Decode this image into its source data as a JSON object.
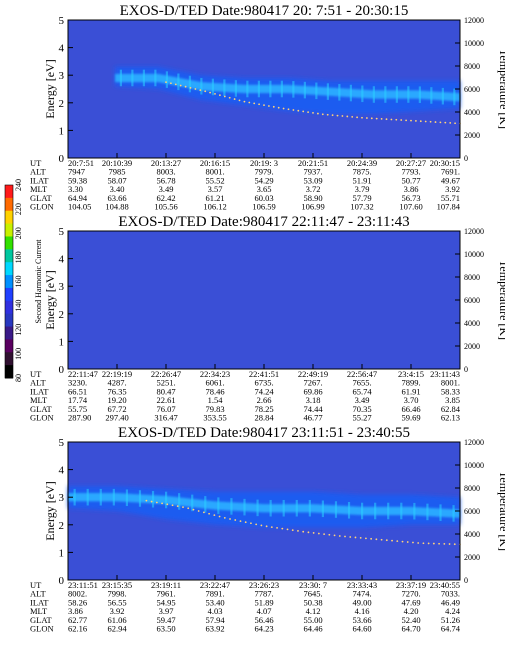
{
  "colorbar": {
    "label": "Second Harmonic Current",
    "ticks": [
      "240",
      "220",
      "200",
      "180",
      "160",
      "140",
      "120",
      "100",
      "80"
    ],
    "colors": [
      "#ff1a1a",
      "#ff6a00",
      "#ffd200",
      "#c8f000",
      "#32e000",
      "#00c8a0",
      "#00d8ff",
      "#0090ff",
      "#2040ff",
      "#3030e0",
      "#2838c0",
      "#3a1a88",
      "#5a0060",
      "#301030",
      "#000000"
    ]
  },
  "chart_data": [
    {
      "type": "heatmap",
      "title": "EXOS-D/TED   Date:980417  20: 7:51 - 20:30:15",
      "ylabel": "Energy [eV]",
      "y2label": "Temperature [K]",
      "ylim": [
        0,
        5
      ],
      "y2lim": [
        0,
        12000
      ],
      "yticks": [
        "0",
        "1",
        "2",
        "3",
        "4",
        "5"
      ],
      "y2ticks": [
        "0",
        "2000",
        "4000",
        "6000",
        "8000",
        "10000",
        "12000"
      ],
      "background": "#3a4fd6",
      "band": {
        "start": 0.12,
        "top": [
          3.3,
          3.3,
          3.0,
          2.9,
          2.9,
          2.8,
          2.8,
          2.8,
          2.8
        ],
        "bottom": [
          2.6,
          2.5,
          2.1,
          1.9,
          1.7,
          1.6,
          1.6,
          1.7,
          1.8
        ],
        "core": [
          2.9,
          2.9,
          2.6,
          2.5,
          2.5,
          2.4,
          2.3,
          2.3,
          2.2
        ]
      },
      "temperature": {
        "x": [
          0.25,
          0.35,
          0.45,
          0.55,
          0.65,
          0.75,
          0.85,
          0.95,
          1.0
        ],
        "y": [
          6600,
          5800,
          4900,
          4300,
          3800,
          3500,
          3300,
          3100,
          3000
        ]
      },
      "table": {
        "labels": [
          "UT",
          "ALT",
          "ILAT",
          "MLT",
          "GLAT",
          "GLON"
        ],
        "columns": [
          [
            "20:7:51",
            "7947",
            "59.38",
            "3.30",
            "64.94",
            "104.05"
          ],
          [
            "20:10:39",
            "7985",
            "58.07",
            "3.40",
            "63.66",
            "104.88"
          ],
          [
            "20:13:27",
            "8003.",
            "56.78",
            "3.49",
            "62.42",
            "105.56"
          ],
          [
            "20:16:15",
            "8001.",
            "55.52",
            "3.57",
            "61.21",
            "106.12"
          ],
          [
            "20:19: 3",
            "7979.",
            "54.29",
            "3.65",
            "60.03",
            "106.59"
          ],
          [
            "20:21:51",
            "7937.",
            "53.09",
            "3.72",
            "58.90",
            "106.99"
          ],
          [
            "20:24:39",
            "7875.",
            "51.91",
            "3.79",
            "57.79",
            "107.32"
          ],
          [
            "20:27:27",
            "7793.",
            "50.77",
            "3.86",
            "56.73",
            "107.60"
          ],
          [
            "20:30:15",
            "7691.",
            "49.67",
            "3.92",
            "55.71",
            "107.84"
          ]
        ]
      }
    },
    {
      "type": "heatmap",
      "title": "EXOS-D/TED   Date:980417  22:11:47 - 23:11:43",
      "ylabel": "Energy [eV]",
      "y2label": "Temperature [K]",
      "ylim": [
        0,
        5
      ],
      "y2lim": [
        0,
        12000
      ],
      "yticks": [
        "0",
        "1",
        "2",
        "3",
        "4",
        "5"
      ],
      "y2ticks": [
        "0",
        "2000",
        "4000",
        "6000",
        "8000",
        "10000",
        "12000"
      ],
      "background": "#3a4fd6",
      "table": {
        "labels": [
          "UT",
          "ALT",
          "ILAT",
          "MLT",
          "GLAT",
          "GLON"
        ],
        "columns": [
          [
            "22:11:47",
            "3230.",
            "66.51",
            "17.74",
            "55.75",
            "287.90"
          ],
          [
            "22:19:19",
            "4287.",
            "76.35",
            "19.20",
            "67.72",
            "297.40"
          ],
          [
            "22:26:47",
            "5251.",
            "80.47",
            "22.61",
            "76.07",
            "316.47"
          ],
          [
            "22:34:23",
            "6061.",
            "78.46",
            "1.54",
            "79.83",
            "353.55"
          ],
          [
            "22:41:51",
            "6735.",
            "74.24",
            "2.66",
            "78.25",
            "28.84"
          ],
          [
            "22:49:19",
            "7267.",
            "69.86",
            "3.18",
            "74.44",
            "46.77"
          ],
          [
            "22:56:47",
            "7655.",
            "65.74",
            "3.49",
            "70.35",
            "55.27"
          ],
          [
            "23:4:15",
            "7899.",
            "61.91",
            "3.70",
            "66.46",
            "59.69"
          ],
          [
            "23:11:43",
            "8001.",
            "58.33",
            "3.85",
            "62.84",
            "62.13"
          ]
        ]
      }
    },
    {
      "type": "heatmap",
      "title": "EXOS-D/TED   Date:980417  23:11:51 - 23:40:55",
      "ylabel": "Energy [eV]",
      "y2label": "Temperature [K]",
      "ylim": [
        0,
        5
      ],
      "y2lim": [
        0,
        12000
      ],
      "yticks": [
        "0",
        "1",
        "2",
        "3",
        "4",
        "5"
      ],
      "y2ticks": [
        "0",
        "2000",
        "4000",
        "6000",
        "8000",
        "10000",
        "12000"
      ],
      "background": "#3a4fd6",
      "band": {
        "start": 0.0,
        "top": [
          3.4,
          3.4,
          3.3,
          3.2,
          3.2,
          3.2,
          3.1,
          3.1,
          3.0
        ],
        "bottom": [
          2.6,
          2.5,
          2.2,
          2.0,
          1.9,
          1.9,
          1.9,
          2.0,
          2.0
        ],
        "core": [
          3.0,
          3.0,
          2.9,
          2.7,
          2.6,
          2.6,
          2.5,
          2.5,
          2.4
        ]
      },
      "temperature": {
        "x": [
          0.2,
          0.3,
          0.4,
          0.5,
          0.6,
          0.7,
          0.8,
          0.9,
          1.0
        ],
        "y": [
          6900,
          6300,
          5400,
          4700,
          4200,
          3800,
          3500,
          3200,
          3100
        ]
      },
      "table": {
        "labels": [
          "UT",
          "ALT",
          "ILAT",
          "MLT",
          "GLAT",
          "GLON"
        ],
        "columns": [
          [
            "23:11:51",
            "8002.",
            "58.26",
            "3.86",
            "62.77",
            "62.16"
          ],
          [
            "23:15:35",
            "7998.",
            "56.55",
            "3.92",
            "61.06",
            "62.94"
          ],
          [
            "23:19:11",
            "7961.",
            "54.95",
            "3.97",
            "59.47",
            "63.50"
          ],
          [
            "23:22:47",
            "7891.",
            "53.40",
            "4.03",
            "57.94",
            "63.92"
          ],
          [
            "23:26:23",
            "7787.",
            "51.89",
            "4.07",
            "56.46",
            "64.23"
          ],
          [
            "23:30: 7",
            "7645.",
            "50.38",
            "4.12",
            "55.00",
            "64.46"
          ],
          [
            "23:33:43",
            "7474.",
            "49.00",
            "4.16",
            "53.66",
            "64.60"
          ],
          [
            "23:37:19",
            "7270.",
            "47.69",
            "4.20",
            "52.40",
            "64.70"
          ],
          [
            "23:40:55",
            "7033.",
            "46.49",
            "4.24",
            "51.26",
            "64.74"
          ]
        ]
      }
    }
  ]
}
